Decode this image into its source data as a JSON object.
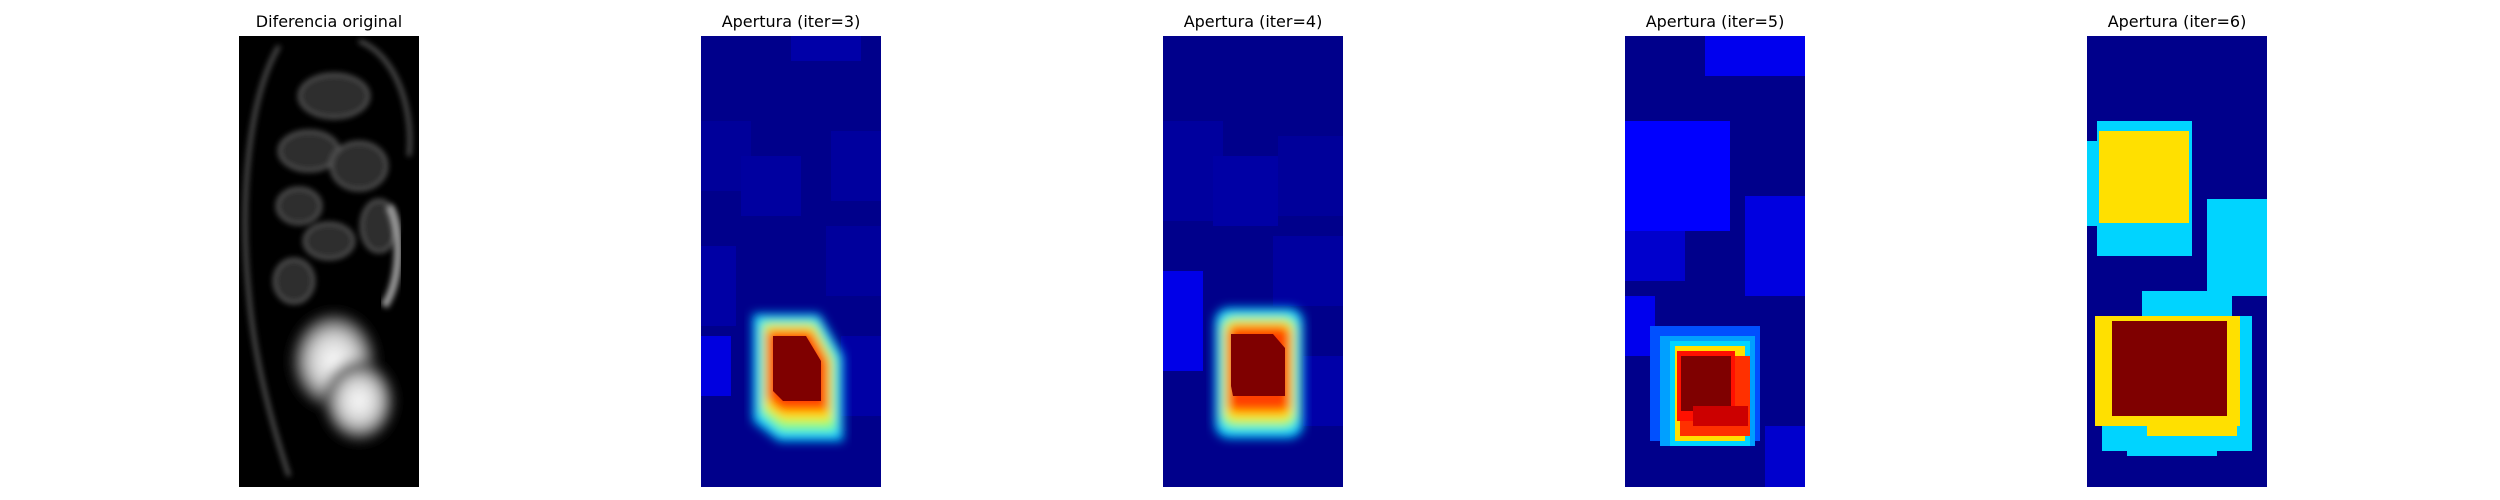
{
  "panels": [
    {
      "title": "Diferencia original",
      "colormap": "gray"
    },
    {
      "title": "Apertura (iter=3)",
      "colormap": "jet"
    },
    {
      "title": "Apertura (iter=4)",
      "colormap": "jet"
    },
    {
      "title": "Apertura (iter=5)",
      "colormap": "jet"
    },
    {
      "title": "Apertura (iter=6)",
      "colormap": "jet"
    }
  ],
  "colors": {
    "jet_background": "#00008b",
    "jet_low": "#0000cd",
    "jet_mid": "#00d4ff",
    "jet_high": "#ffe000",
    "jet_peak": "#7f0000"
  }
}
